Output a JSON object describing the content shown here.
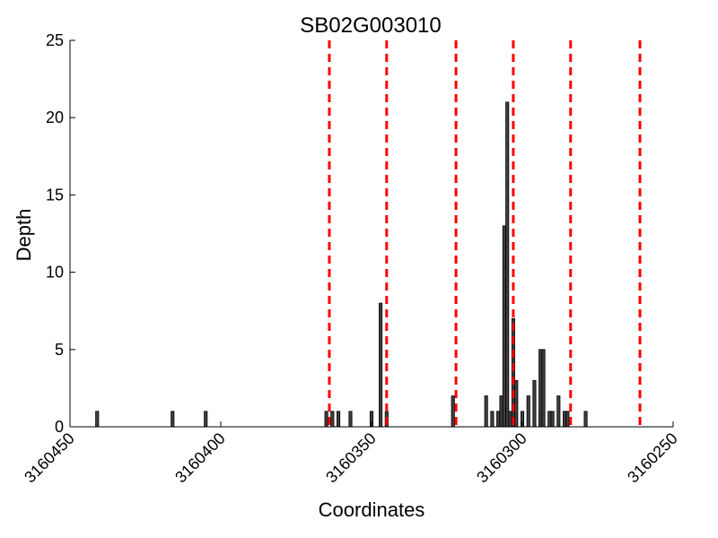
{
  "chart_data": {
    "type": "bar",
    "title": "SB02G003010",
    "xlabel": "Coordinates",
    "ylabel": "Depth",
    "xlim": [
      3160450,
      3160250
    ],
    "ylim": [
      0,
      25
    ],
    "x_reversed": true,
    "x_ticks": [
      3160450,
      3160400,
      3160350,
      3160300,
      3160250
    ],
    "x_tick_labels": [
      "3160450",
      "3160400",
      "3160350",
      "3160300",
      "3160250"
    ],
    "y_ticks": [
      0,
      5,
      10,
      15,
      20,
      25
    ],
    "y_tick_labels": [
      "0",
      "5",
      "10",
      "15",
      "20",
      "25"
    ],
    "grid": false,
    "bar_color": "#404040",
    "marker_color": "#ff0000",
    "x": [
      3160441,
      3160416,
      3160405,
      3160365,
      3160363,
      3160361,
      3160357,
      3160350,
      3160347,
      3160345,
      3160323,
      3160312,
      3160310,
      3160308,
      3160307,
      3160306,
      3160305,
      3160304,
      3160303,
      3160302,
      3160300,
      3160298,
      3160296,
      3160294,
      3160294,
      3160293,
      3160291,
      3160290,
      3160288,
      3160286,
      3160285,
      3160279
    ],
    "values": [
      1,
      1,
      1,
      1,
      1,
      1,
      1,
      1,
      8,
      1,
      2,
      2,
      1,
      1,
      2,
      13,
      21,
      1,
      7,
      3,
      1,
      2,
      3,
      1,
      5,
      5,
      1,
      1,
      2,
      1,
      1,
      1
    ],
    "vertical_markers": [
      3160364,
      3160345,
      3160322,
      3160303,
      3160284,
      3160261
    ]
  }
}
